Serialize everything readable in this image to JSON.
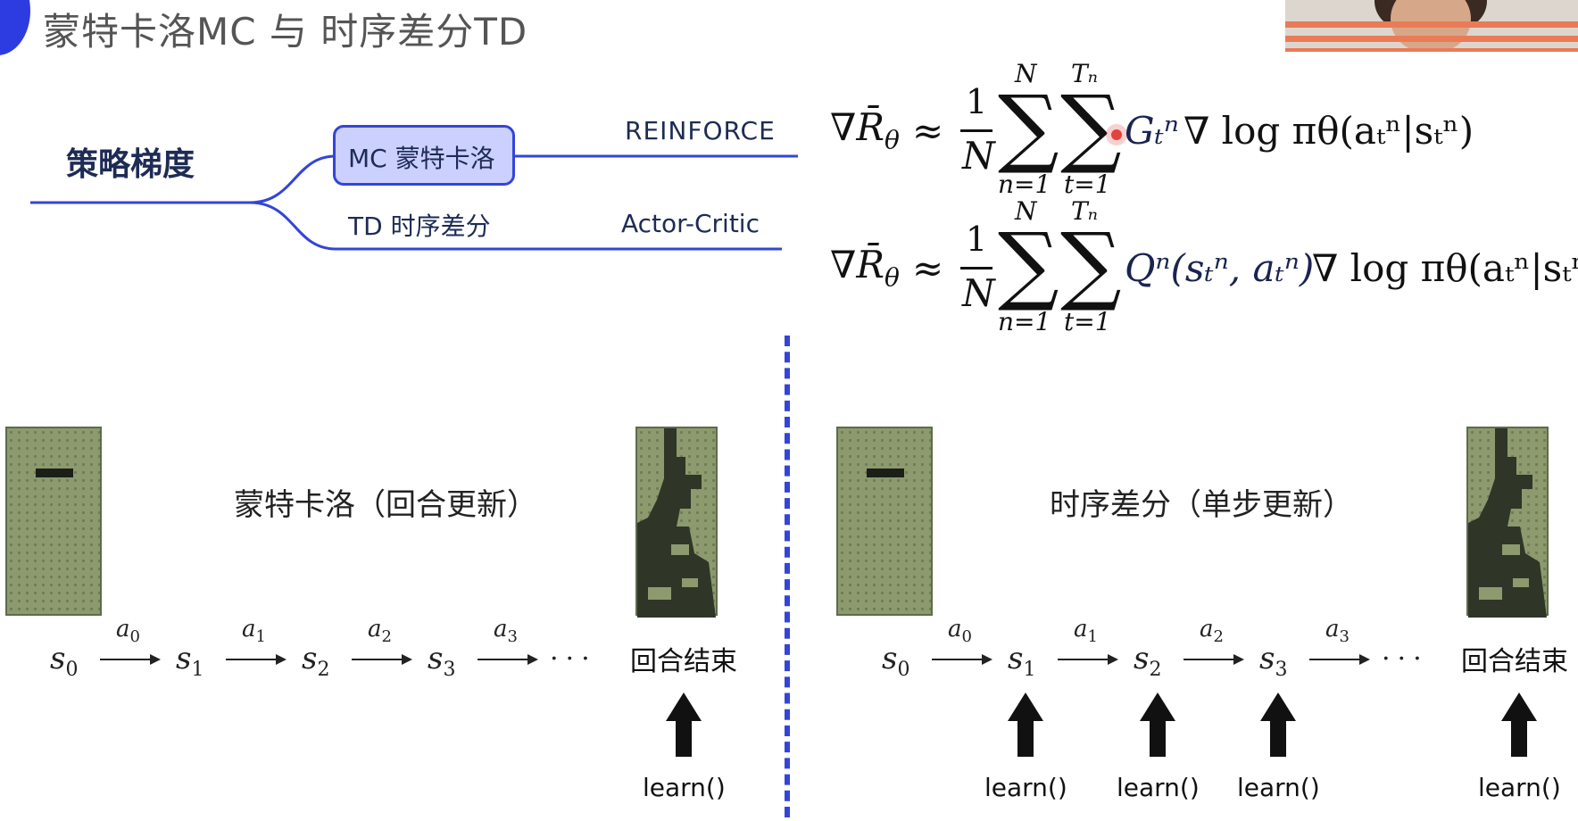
{
  "header": {
    "title": "蒙特卡洛MC 与 时序差分TD"
  },
  "mindmap": {
    "root": "策略梯度",
    "branch_mc": "MC 蒙特卡洛",
    "branch_td": "TD 时序差分",
    "leaf_reinforce": "REINFORCE",
    "leaf_actor_critic": "Actor-Critic"
  },
  "formulas": {
    "lhs_nabla": "∇",
    "lhs_R": "R̄",
    "lhs_theta": "θ",
    "approx": "≈",
    "frac_num": "1",
    "frac_den": "N",
    "sum_upper_n": "N",
    "sum_lower_n": "n=1",
    "sum_upper_t": "Tₙ",
    "sum_lower_t": "t=1",
    "f1_weight": "Gₜⁿ",
    "f2_weight": "Qⁿ(sₜⁿ, aₜⁿ)",
    "grad_log": "∇ log πθ(aₜⁿ|sₜⁿ)"
  },
  "panels": {
    "mc": {
      "caption": "蒙特卡洛（回合更新）",
      "states": [
        "s",
        "s",
        "s",
        "s"
      ],
      "state_subs": [
        "0",
        "1",
        "2",
        "3"
      ],
      "actions": [
        "a",
        "a",
        "a",
        "a"
      ],
      "action_subs": [
        "0",
        "1",
        "2",
        "3"
      ],
      "dots": "...",
      "end": "回合结束",
      "learn": [
        "learn()"
      ]
    },
    "td": {
      "caption": "时序差分（单步更新）",
      "states": [
        "s",
        "s",
        "s",
        "s"
      ],
      "state_subs": [
        "0",
        "1",
        "2",
        "3"
      ],
      "actions": [
        "a",
        "a",
        "a",
        "a"
      ],
      "action_subs": [
        "0",
        "1",
        "2",
        "3"
      ],
      "dots": "...",
      "end": "回合结束",
      "learn": [
        "learn()",
        "learn()",
        "learn()",
        "learn()"
      ]
    }
  },
  "colors": {
    "accent": "#3345d8",
    "box_fill": "#cbd0ff",
    "board": "#8c9a6e"
  }
}
